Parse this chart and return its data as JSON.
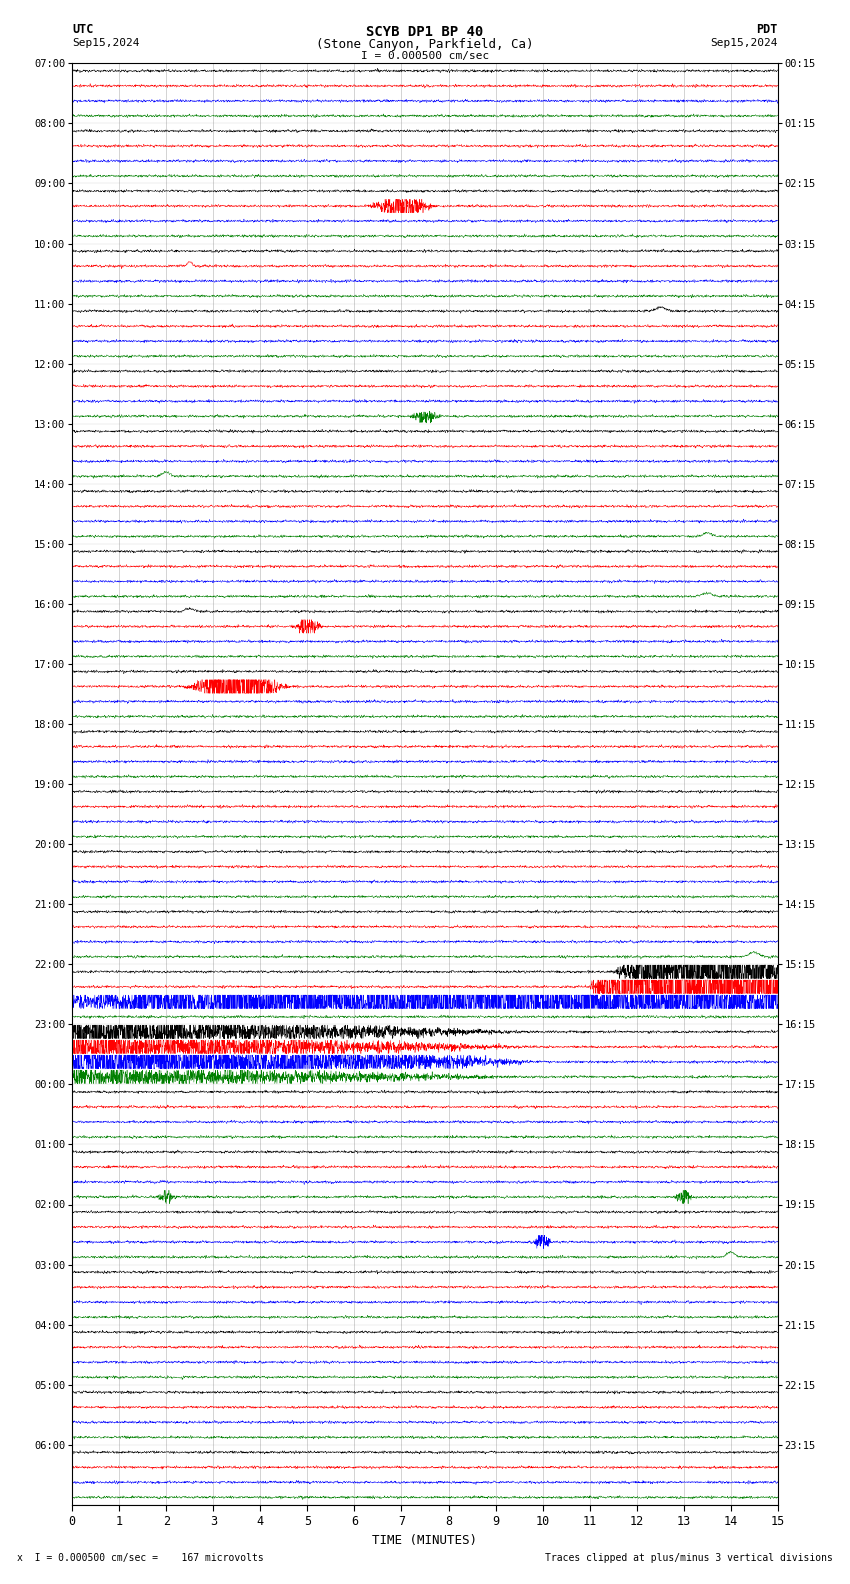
{
  "title_line1": "SCYB DP1 BP 40",
  "title_line2": "(Stone Canyon, Parkfield, Ca)",
  "scale_text": "I = 0.000500 cm/sec",
  "utc_label": "UTC",
  "pdt_label": "PDT",
  "date_left": "Sep15,2024",
  "date_right": "Sep15,2024",
  "footer_left": "x  I = 0.000500 cm/sec =    167 microvolts",
  "footer_right": "Traces clipped at plus/minus 3 vertical divisions",
  "xlabel": "TIME (MINUTES)",
  "xlim": [
    0,
    15
  ],
  "xticks": [
    0,
    1,
    2,
    3,
    4,
    5,
    6,
    7,
    8,
    9,
    10,
    11,
    12,
    13,
    14,
    15
  ],
  "bg_color": "#ffffff",
  "trace_colors": [
    "black",
    "red",
    "blue",
    "green"
  ],
  "utc_hours": [
    "07:00",
    "08:00",
    "09:00",
    "10:00",
    "11:00",
    "12:00",
    "13:00",
    "14:00",
    "15:00",
    "16:00",
    "17:00",
    "18:00",
    "19:00",
    "20:00",
    "21:00",
    "22:00",
    "23:00",
    "00:00",
    "01:00",
    "02:00",
    "03:00",
    "04:00",
    "05:00",
    "06:00"
  ],
  "pdt_hours": [
    "00:15",
    "01:15",
    "02:15",
    "03:15",
    "04:15",
    "05:15",
    "06:15",
    "07:15",
    "08:15",
    "09:15",
    "10:15",
    "11:15",
    "12:15",
    "13:15",
    "14:15",
    "15:15",
    "16:15",
    "17:15",
    "18:15",
    "19:15",
    "20:15",
    "21:15",
    "22:15",
    "23:15"
  ],
  "sep16_hour_index": 17,
  "noise_seed": 12345
}
